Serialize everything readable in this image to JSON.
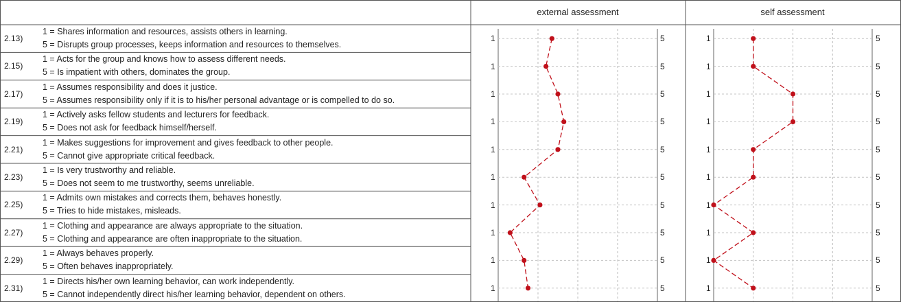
{
  "headers": {
    "external": "external assessment",
    "self": "self assessment"
  },
  "scale": {
    "min_label": "1",
    "max_label": "5"
  },
  "accent_color": "#c0101a",
  "chart_data": {
    "type": "line",
    "xlim": [
      1,
      5
    ],
    "grid": true,
    "series": [
      {
        "name": "external assessment",
        "values": [
          2.35,
          2.2,
          2.5,
          2.65,
          2.5,
          1.65,
          2.05,
          1.3,
          1.65,
          1.75
        ]
      },
      {
        "name": "self assessment",
        "values": [
          2.0,
          2.0,
          3.0,
          3.0,
          2.0,
          2.0,
          1.0,
          2.0,
          1.0,
          2.0
        ]
      }
    ]
  },
  "rows": [
    {
      "id": "2.13)",
      "one": "1 = Shares information and resources, assists others in learning.",
      "five": "5 = Disrupts group processes, keeps information and resources to themselves."
    },
    {
      "id": "2.15)",
      "one": "1 = Acts for the group and knows how to assess different needs.",
      "five": "5 = Is impatient with others, dominates the group."
    },
    {
      "id": "2.17)",
      "one": "1 = Assumes responsibility and does it justice.",
      "five": "5 = Assumes responsibility only if it is to his/her personal advantage or is compelled to do so."
    },
    {
      "id": "2.19)",
      "one": "1 = Actively asks fellow students and lecturers for feedback.",
      "five": "5 = Does not ask for feedback himself/herself."
    },
    {
      "id": "2.21)",
      "one": "1 = Makes suggestions for improvement and gives feedback to other people.",
      "five": "5 = Cannot give appropriate critical feedback."
    },
    {
      "id": "2.23)",
      "one": "1 = Is very trustworthy and reliable.",
      "five": "5 = Does not seem to me trustworthy, seems unreliable."
    },
    {
      "id": "2.25)",
      "one": "1 = Admits own mistakes and corrects them, behaves honestly.",
      "five": "5 = Tries to hide mistakes, misleads."
    },
    {
      "id": "2.27)",
      "one": "1 = Clothing and appearance are always appropriate to the situation.",
      "five": "5 = Clothing and appearance are often inappropriate to the situation."
    },
    {
      "id": "2.29)",
      "one": "1 = Always behaves properly.",
      "five": "5 = Often behaves inappropriately."
    },
    {
      "id": "2.31)",
      "one": "1 = Directs his/her own learning behavior, can work independently.",
      "five": "5 = Cannot independently direct his/her learning behavior, dependent on others."
    }
  ]
}
